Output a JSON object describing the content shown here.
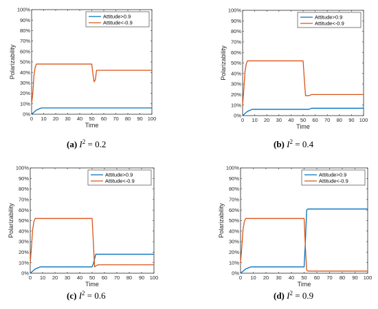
{
  "chart_data": [
    {
      "type": "line",
      "caption": {
        "letter": "(a)",
        "var": "I",
        "sup": "2",
        "rest": " = 0.2"
      },
      "xlabel": "Time",
      "ylabel": "Polarizability",
      "xlim": [
        0,
        100
      ],
      "ylim": [
        0,
        100
      ],
      "xticks": [
        0,
        10,
        20,
        30,
        40,
        50,
        60,
        70,
        80,
        90,
        100
      ],
      "yticks": [
        "0%",
        "10%",
        "20%",
        "30%",
        "40%",
        "50%",
        "60%",
        "70%",
        "80%",
        "90%",
        "100%"
      ],
      "grid": false,
      "legend": "top-right",
      "series": [
        {
          "name": "Attitude>0.9",
          "color": "#0072BD",
          "x": [
            0,
            2,
            4,
            6,
            8,
            50,
            100
          ],
          "y": [
            0,
            2,
            4,
            5,
            6,
            6,
            6
          ]
        },
        {
          "name": "Attitude<-0.9",
          "color": "#D95319",
          "x": [
            0,
            1,
            2,
            3,
            4,
            6,
            50,
            51,
            52,
            53,
            54,
            55,
            100
          ],
          "y": [
            10,
            20,
            38,
            45,
            48,
            48,
            48,
            38,
            31,
            33,
            42,
            42,
            42
          ]
        }
      ]
    },
    {
      "type": "line",
      "caption": {
        "letter": "(b)",
        "var": "I",
        "sup": "2",
        "rest": " = 0.4"
      },
      "xlabel": "Time",
      "ylabel": "Polarizability",
      "xlim": [
        0,
        100
      ],
      "ylim": [
        0,
        100
      ],
      "xticks": [
        0,
        10,
        20,
        30,
        40,
        50,
        60,
        70,
        80,
        90,
        100
      ],
      "yticks": [
        "0%",
        "10%",
        "20%",
        "30%",
        "40%",
        "50%",
        "60%",
        "70%",
        "80%",
        "90%",
        "100%"
      ],
      "grid": false,
      "legend": "top-right",
      "series": [
        {
          "name": "Attitude>0.9",
          "color": "#0072BD",
          "x": [
            0,
            2,
            4,
            6,
            8,
            55,
            57,
            100
          ],
          "y": [
            0,
            2,
            4,
            5,
            6,
            6,
            7,
            7
          ]
        },
        {
          "name": "Attitude<-0.9",
          "color": "#D95319",
          "x": [
            0,
            1,
            2,
            3,
            4,
            6,
            50,
            51,
            52,
            55,
            57,
            100
          ],
          "y": [
            10,
            25,
            42,
            49,
            52,
            52,
            52,
            35,
            19,
            19,
            20,
            20
          ]
        }
      ]
    },
    {
      "type": "line",
      "caption": {
        "letter": "(c)",
        "var": "I",
        "sup": "2",
        "rest": " = 0.6"
      },
      "xlabel": "Time",
      "ylabel": "Polarizability",
      "xlim": [
        0,
        100
      ],
      "ylim": [
        0,
        100
      ],
      "xticks": [
        0,
        10,
        20,
        30,
        40,
        50,
        60,
        70,
        80,
        90,
        100
      ],
      "yticks": [
        "0%",
        "10%",
        "20%",
        "30%",
        "40%",
        "50%",
        "60%",
        "70%",
        "80%",
        "90%",
        "100%"
      ],
      "grid": false,
      "legend": "top-right",
      "series": [
        {
          "name": "Attitude>0.9",
          "color": "#0072BD",
          "x": [
            0,
            2,
            4,
            6,
            8,
            50,
            51,
            53,
            55,
            100
          ],
          "y": [
            0,
            2,
            4,
            5,
            6,
            6,
            9,
            18,
            18,
            18
          ]
        },
        {
          "name": "Attitude<-0.9",
          "color": "#D95319",
          "x": [
            0,
            1,
            2,
            3,
            4,
            6,
            50,
            51,
            52,
            53,
            55,
            100
          ],
          "y": [
            10,
            25,
            42,
            49,
            52,
            52,
            52,
            30,
            6,
            7,
            8,
            8
          ]
        }
      ]
    },
    {
      "type": "line",
      "caption": {
        "letter": "(d)",
        "var": "I",
        "sup": "2",
        "rest": " = 0.9"
      },
      "xlabel": "Time",
      "ylabel": "Polarizability",
      "xlim": [
        0,
        100
      ],
      "ylim": [
        0,
        100
      ],
      "xticks": [
        0,
        10,
        20,
        30,
        40,
        50,
        60,
        70,
        80,
        90,
        100
      ],
      "yticks": [
        "0%",
        "10%",
        "20%",
        "30%",
        "40%",
        "50%",
        "60%",
        "70%",
        "80%",
        "90%",
        "100%"
      ],
      "grid": false,
      "legend": "top-right",
      "series": [
        {
          "name": "Attitude>0.9",
          "color": "#0072BD",
          "x": [
            0,
            2,
            4,
            6,
            8,
            50,
            51,
            52,
            53,
            100
          ],
          "y": [
            0,
            2,
            4,
            5,
            6,
            6,
            30,
            60,
            61,
            61
          ]
        },
        {
          "name": "Attitude<-0.9",
          "color": "#D95319",
          "x": [
            0,
            1,
            2,
            3,
            4,
            6,
            50,
            51,
            52,
            53,
            100
          ],
          "y": [
            10,
            25,
            42,
            49,
            52,
            52,
            52,
            25,
            3,
            2,
            2
          ]
        }
      ]
    }
  ]
}
